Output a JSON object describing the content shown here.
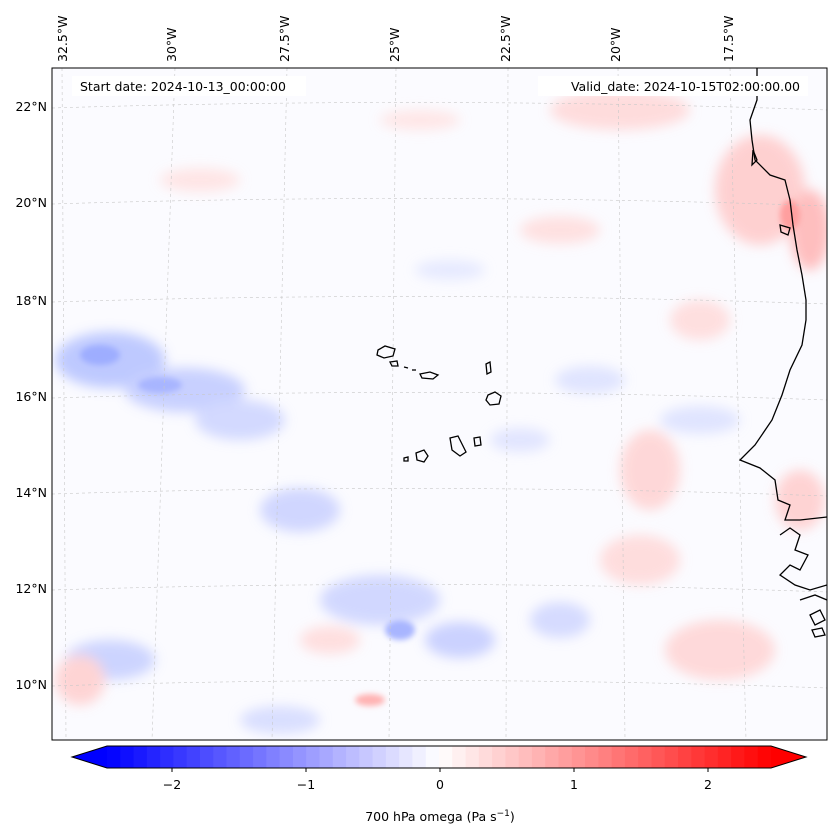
{
  "map": {
    "start_date": "Start date: 2024-10-13_00:00:00",
    "valid_date": "Valid_date: 2024-10-15T02:00:00.00",
    "lon_labels": [
      "32.5°W",
      "30°W",
      "27.5°W",
      "25°W",
      "22.5°W",
      "20°W",
      "17.5°W"
    ],
    "lat_labels": [
      "22°N",
      "20°N",
      "18°N",
      "16°N",
      "14°N",
      "12°N",
      "10°N"
    ],
    "field": "700 hPa omega",
    "colors": {
      "negative": "#0000ff",
      "zero": "#ffffff",
      "positive": "#ff0000",
      "coastline": "#000000"
    }
  },
  "colorbar": {
    "label_main": "700 hPa omega (Pa s",
    "label_exp": "−1",
    "label_close": ")",
    "range": [
      -2.75,
      2.75
    ],
    "ticks": [
      {
        "value": -2,
        "label": "−2"
      },
      {
        "value": -1,
        "label": "−1"
      },
      {
        "value": 0,
        "label": "0"
      },
      {
        "value": 1,
        "label": "1"
      },
      {
        "value": 2,
        "label": "2"
      }
    ]
  }
}
